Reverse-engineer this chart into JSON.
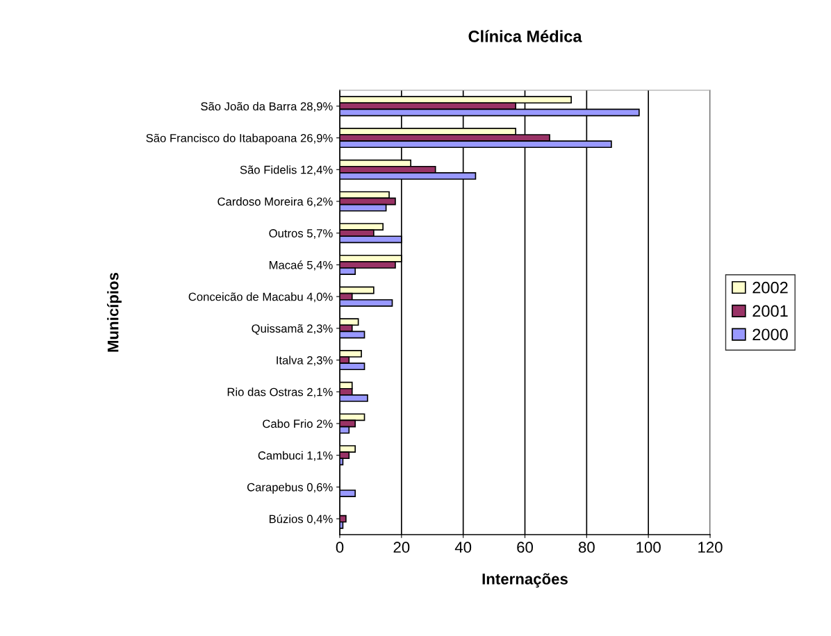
{
  "chart_data": {
    "type": "bar",
    "orientation": "horizontal",
    "title": "Clínica Médica",
    "xlabel": "Internações",
    "ylabel": "Municípios",
    "categories": [
      "São João da Barra 28,9%",
      "São Francisco do Itabapoana 26,9%",
      "São Fidelis 12,4%",
      "Cardoso Moreira 6,2%",
      "Outros 5,7%",
      "Macaé 5,4%",
      "Conceicão de Macabu 4,0%",
      "Quissamã 2,3%",
      "Italva 2,3%",
      "Rio das Ostras 2,1%",
      "Cabo Frio 2%",
      "Cambuci 1,1%",
      "Carapebus 0,6%",
      "Búzios 0,4%"
    ],
    "series": [
      {
        "name": "2002",
        "color": "#ffffcc",
        "values": [
          75,
          57,
          23,
          16,
          14,
          20,
          11,
          6,
          7,
          4,
          8,
          5,
          0,
          0
        ]
      },
      {
        "name": "2001",
        "color": "#993366",
        "values": [
          57,
          68,
          31,
          18,
          11,
          18,
          4,
          4,
          3,
          4,
          5,
          3,
          0,
          2
        ]
      },
      {
        "name": "2000",
        "color": "#9999ff",
        "values": [
          97,
          88,
          44,
          15,
          20,
          5,
          17,
          8,
          8,
          9,
          3,
          1,
          5,
          1
        ]
      }
    ],
    "xlim": [
      0,
      120
    ],
    "xticks": [
      0,
      20,
      40,
      60,
      80,
      100,
      120
    ],
    "grid": "x",
    "legend": "right"
  }
}
